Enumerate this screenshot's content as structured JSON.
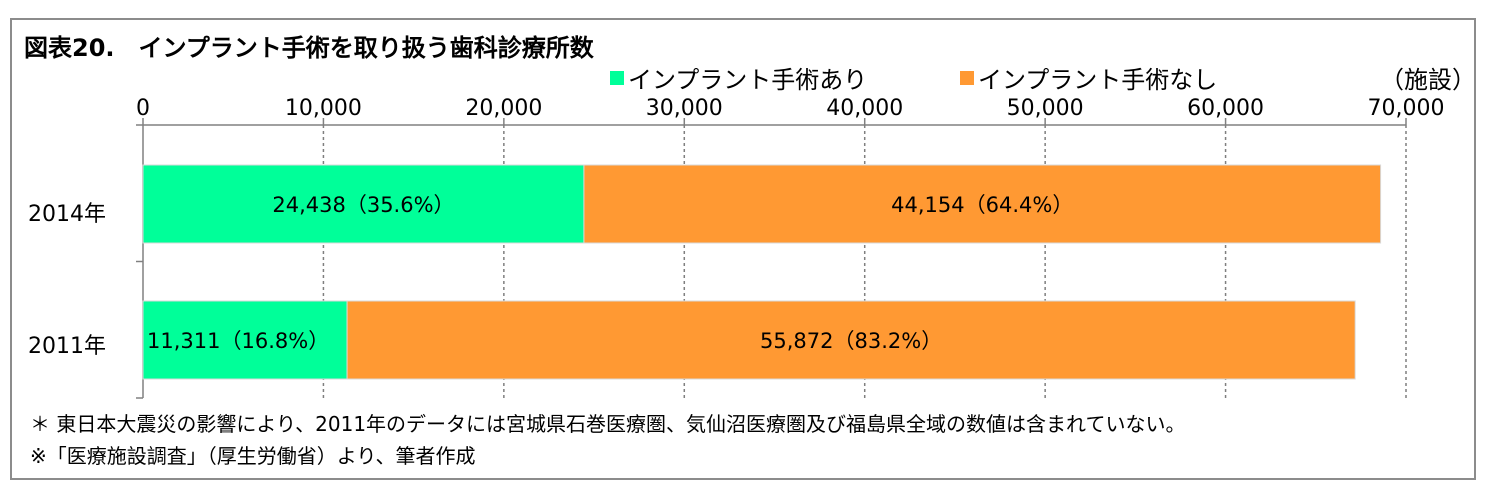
{
  "chart_data": {
    "type": "bar",
    "orientation": "horizontal",
    "stacked": true,
    "title": "図表20.　インプラント手術を取り扱う歯科診療所数",
    "unit_label": "（施設）",
    "categories": [
      "2014年",
      "2011年"
    ],
    "series": [
      {
        "name": "インプラント手術あり",
        "color": "#00ff99",
        "values": [
          24438,
          11311
        ],
        "labels": [
          "24,438（35.6%）",
          "11,311（16.8%）"
        ]
      },
      {
        "name": "インプラント手術なし",
        "color": "#ff9933",
        "values": [
          44154,
          55872
        ],
        "labels": [
          "44,154（64.4%）",
          "55,872（83.2%）"
        ]
      }
    ],
    "xlim": [
      0,
      70000
    ],
    "x_ticks": [
      0,
      10000,
      20000,
      30000,
      40000,
      50000,
      60000,
      70000
    ],
    "x_tick_labels": [
      "0",
      "10,000",
      "20,000",
      "30,000",
      "40,000",
      "50,000",
      "60,000",
      "70,000"
    ],
    "grid": "vertical-dashed",
    "legend_position": "top",
    "notes": [
      "＊ 東日本大震災の影響により、2011年のデータには宮城県石巻医療圏、気仙沼医療圏及び福島県全域の数値は含まれていない。",
      "※「医療施設調査」（厚生労働省）より、筆者作成"
    ]
  }
}
